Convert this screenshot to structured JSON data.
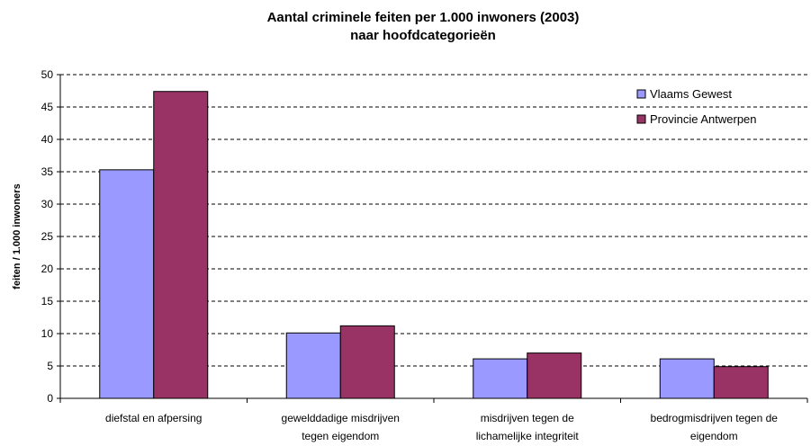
{
  "chart_data": {
    "type": "bar",
    "title": "Aantal criminele feiten per 1.000 inwoners (2003)",
    "subtitle": "naar hoofdcategorieën",
    "y_label": "feiten / 1.000 inwoners",
    "categories": [
      "diefstal en afpersing",
      "gewelddadige misdrijven tegen eigendom",
      "misdrijven tegen de lichamelijke integriteit",
      "bedrogmisdrijven tegen de eigendom"
    ],
    "series": [
      {
        "name": "Vlaams Gewest",
        "color": "#9999ff",
        "values": [
          35.3,
          10.1,
          6.1,
          6.1
        ]
      },
      {
        "name": "Provincie Antwerpen",
        "color": "#993366",
        "values": [
          47.4,
          11.2,
          7.0,
          4.9
        ]
      }
    ],
    "ylim": [
      0,
      50
    ],
    "yticks": [
      0,
      5,
      10,
      15,
      20,
      25,
      30,
      35,
      40,
      45,
      50
    ],
    "grid": true,
    "legend": "top-right"
  }
}
